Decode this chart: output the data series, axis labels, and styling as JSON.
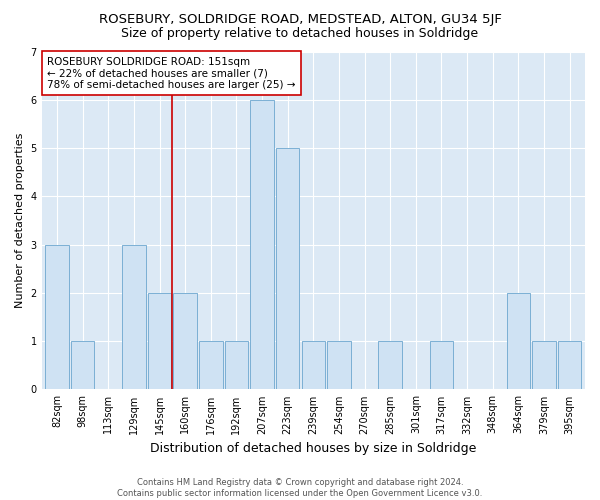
{
  "title": "ROSEBURY, SOLDRIDGE ROAD, MEDSTEAD, ALTON, GU34 5JF",
  "subtitle": "Size of property relative to detached houses in Soldridge",
  "xlabel": "Distribution of detached houses by size in Soldridge",
  "ylabel": "Number of detached properties",
  "categories": [
    "82sqm",
    "98sqm",
    "113sqm",
    "129sqm",
    "145sqm",
    "160sqm",
    "176sqm",
    "192sqm",
    "207sqm",
    "223sqm",
    "239sqm",
    "254sqm",
    "270sqm",
    "285sqm",
    "301sqm",
    "317sqm",
    "332sqm",
    "348sqm",
    "364sqm",
    "379sqm",
    "395sqm"
  ],
  "values": [
    3,
    1,
    0,
    3,
    2,
    2,
    1,
    1,
    6,
    5,
    1,
    1,
    0,
    1,
    0,
    1,
    0,
    0,
    2,
    1,
    1
  ],
  "bar_color": "#cfe2f3",
  "bar_edge_color": "#7bafd4",
  "reference_line_x": 4.5,
  "reference_line_color": "#cc0000",
  "annotation_text": "ROSEBURY SOLDRIDGE ROAD: 151sqm\n← 22% of detached houses are smaller (7)\n78% of semi-detached houses are larger (25) →",
  "annotation_box_color": "white",
  "annotation_box_edge_color": "#cc0000",
  "ylim": [
    0,
    7
  ],
  "yticks": [
    0,
    1,
    2,
    3,
    4,
    5,
    6,
    7
  ],
  "footer": "Contains HM Land Registry data © Crown copyright and database right 2024.\nContains public sector information licensed under the Open Government Licence v3.0.",
  "bg_color": "#dce9f5",
  "title_fontsize": 9.5,
  "subtitle_fontsize": 9,
  "xlabel_fontsize": 9,
  "ylabel_fontsize": 8,
  "tick_fontsize": 7,
  "annotation_fontsize": 7.5,
  "footer_fontsize": 6
}
